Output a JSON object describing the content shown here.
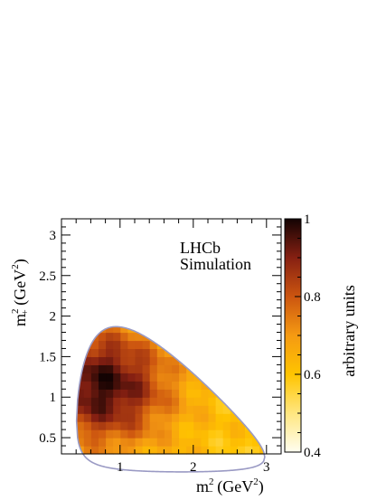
{
  "chart_data": {
    "type": "heatmap",
    "title": "",
    "annotation": [
      "LHCb",
      "Simulation"
    ],
    "xlabel": {
      "base": "m",
      "sup": "2",
      "sub": "−",
      "unit": " (GeV",
      "unit_sup": "2",
      "unit_close": ")"
    },
    "ylabel": {
      "base": "m",
      "sup": "2",
      "sub": "+",
      "unit": " (GeV",
      "unit_sup": "2",
      "unit_close": ")"
    },
    "xlim": [
      0.2,
      3.2
    ],
    "ylim": [
      0.3,
      3.2
    ],
    "xticks": [
      1,
      2,
      3
    ],
    "xtick_labels": [
      "1",
      "2",
      "3"
    ],
    "yticks": [
      0.5,
      1,
      1.5,
      2,
      2.5,
      3
    ],
    "ytick_labels": [
      "0.5",
      "1",
      "1.5",
      "2",
      "2.5",
      "3"
    ],
    "colorbar": {
      "label": "arbitrary units",
      "range": [
        0.4,
        1.0
      ],
      "ticks": [
        0.4,
        0.6,
        0.8,
        1
      ],
      "tick_labels": [
        "0.4",
        "0.6",
        "0.8",
        "1"
      ],
      "colors": [
        "#fffef0",
        "#ffe680",
        "#ffc400",
        "#f59a12",
        "#cc5510",
        "#862012",
        "#140303"
      ]
    },
    "boundary_color": "#9a9ac4",
    "intensity_model": {
      "peak_m2_minus": 0.75,
      "peak_m2_plus": 1.15,
      "peak_value": 0.97,
      "background_value": 0.6
    }
  }
}
